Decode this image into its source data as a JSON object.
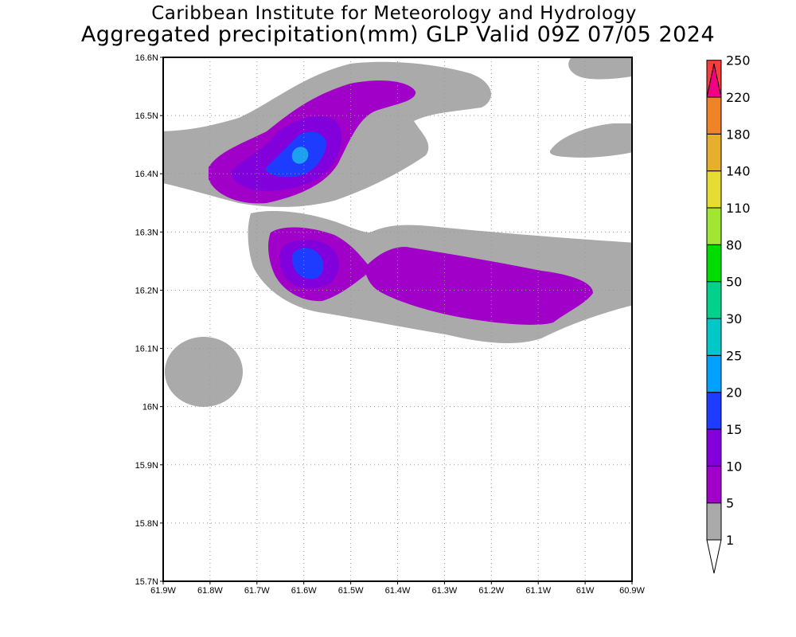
{
  "title": "Caribbean Institute for Meteorology and Hydrology",
  "subtitle": "Aggregated precipitation(mm) GLP Valid 09Z 07/05 2024",
  "chart_data": {
    "type": "heatmap",
    "title": "Aggregated precipitation(mm) GLP Valid 09Z 07/05 2024",
    "x_range": [
      -61.9,
      -60.9
    ],
    "y_range": [
      15.7,
      16.6
    ],
    "x_ticks": [
      "61.9W",
      "61.8W",
      "61.7W",
      "61.6W",
      "61.5W",
      "61.4W",
      "61.3W",
      "61.2W",
      "61.1W",
      "61W",
      "60.9W"
    ],
    "y_ticks": [
      "15.7N",
      "15.8N",
      "15.9N",
      "16N",
      "16.1N",
      "16.2N",
      "16.3N",
      "16.4N",
      "16.5N",
      "16.6N"
    ],
    "grid": true,
    "colorbar": {
      "levels": [
        "1",
        "5",
        "10",
        "15",
        "20",
        "25",
        "30",
        "50",
        "80",
        "110",
        "140",
        "180",
        "220",
        "250"
      ],
      "colors": [
        "#aaaaaa",
        "#a000c8",
        "#8200dc",
        "#1e3cff",
        "#00a0ff",
        "#00c8c8",
        "#00d28c",
        "#00dc00",
        "#a0e632",
        "#e6dc32",
        "#e6af2d",
        "#f08228",
        "#fa3c3c",
        "#f00082"
      ]
    },
    "features": [
      {
        "region": "northern band near 61.6W 16.43N",
        "max_range_mm": "20-25"
      },
      {
        "region": "southern band near 61.6W 16.25N",
        "max_range_mm": "15-20"
      }
    ]
  }
}
